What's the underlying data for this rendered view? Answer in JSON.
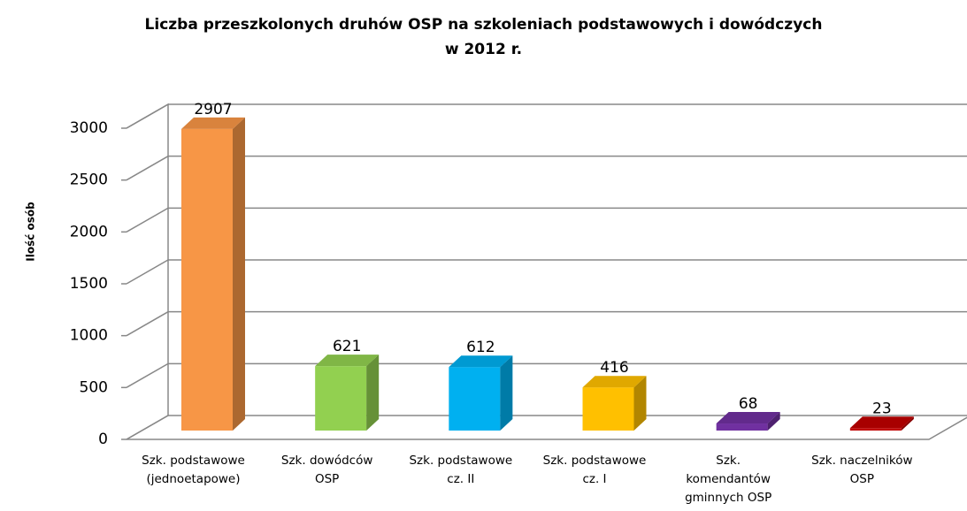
{
  "chart_data": {
    "type": "bar3d",
    "title": "Liczba przeszkolonych druhów OSP na szkoleniach podstawowych i dowódczych\nw 2012 r.",
    "y_label": "Ilość osób",
    "categories": [
      "Szk. podstawowe\n(jednoetapowe)",
      "Szk. dowódców\nOSP",
      "Szk. podstawowe\ncz. II",
      "Szk. podstawowe\ncz. I",
      "Szk.\nkomendantów\ngminnych OSP",
      "Szk. naczelników\nOSP"
    ],
    "values": [
      2907,
      621,
      612,
      416,
      68,
      23
    ],
    "colors": [
      "#f79646",
      "#92d050",
      "#00b0f0",
      "#ffc000",
      "#7030a0",
      "#c00000"
    ],
    "ylim": [
      0,
      3000
    ],
    "yticks": [
      0,
      500,
      1000,
      1500,
      2000,
      2500,
      3000
    ],
    "grid": true
  }
}
